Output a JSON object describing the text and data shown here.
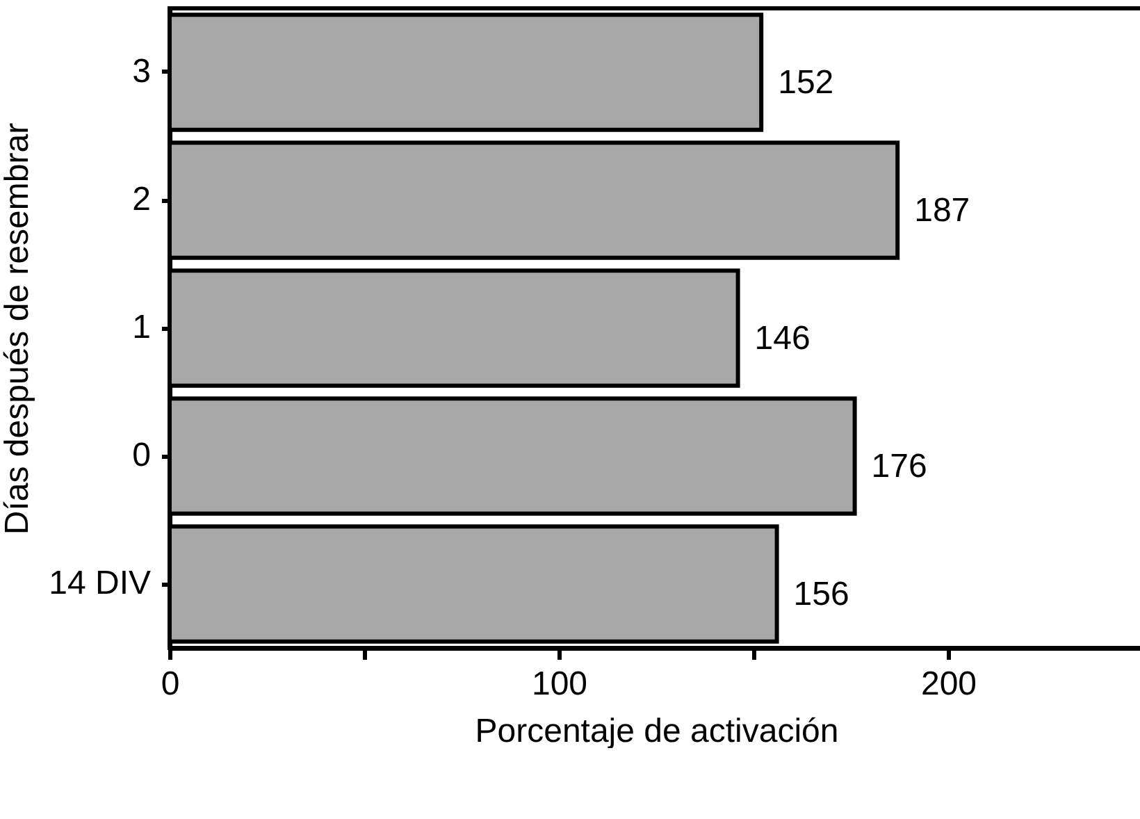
{
  "chart_data": {
    "type": "bar",
    "orientation": "horizontal",
    "ylabel": "Días después de resembrar",
    "xlabel": "Porcentaje de activación",
    "categories": [
      "3",
      "2",
      "1",
      "0",
      "14 DIV"
    ],
    "values": [
      152,
      187,
      146,
      176,
      156
    ],
    "color": "#a8a8a8",
    "xlim": [
      0,
      250
    ],
    "xticks": [
      0,
      {
        "value": 50,
        "label": null
      },
      100,
      {
        "value": 150,
        "label": null
      },
      200
    ],
    "data_labels": true,
    "grid": false
  }
}
